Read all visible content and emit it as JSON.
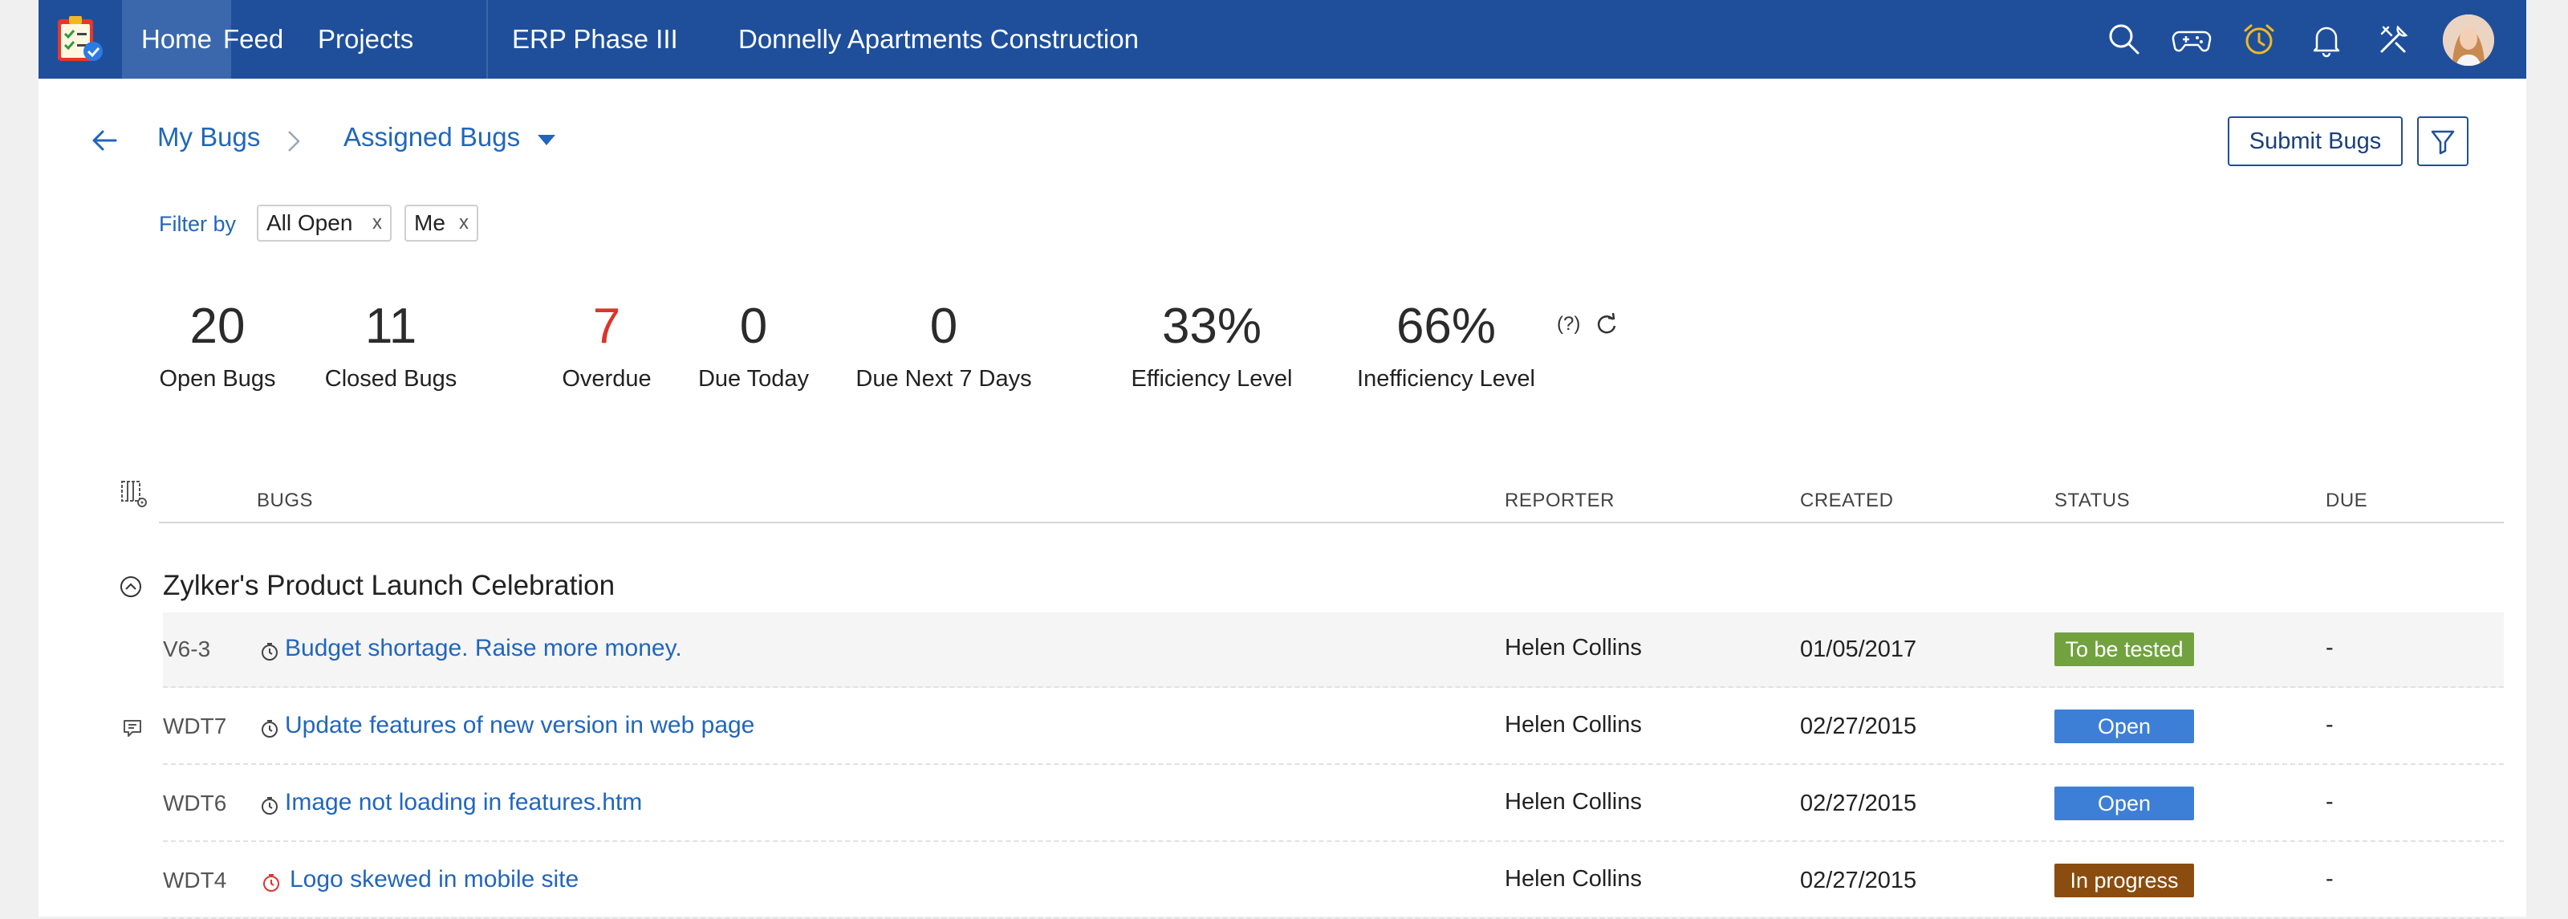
{
  "nav": {
    "items": [
      {
        "label": "Home"
      },
      {
        "label": "Feed"
      },
      {
        "label": "Projects"
      },
      {
        "label": "ERP Phase III"
      },
      {
        "label": "Donnelly Apartments Construction"
      }
    ],
    "icons": [
      "search-icon",
      "gamepad-icon",
      "alarm-clock-icon",
      "bell-icon",
      "tools-icon"
    ],
    "accent_color": "#1f4f9b"
  },
  "breadcrumb": {
    "root": "My Bugs",
    "current": "Assigned Bugs"
  },
  "actions": {
    "submit_label": "Submit Bugs"
  },
  "filters": {
    "label": "Filter by",
    "chips": [
      {
        "label": "All Open",
        "remove": "x"
      },
      {
        "label": "Me",
        "remove": "x"
      }
    ]
  },
  "stats": [
    {
      "value": "20",
      "label": "Open Bugs"
    },
    {
      "value": "11",
      "label": "Closed Bugs"
    },
    {
      "value": "7",
      "label": "Overdue"
    },
    {
      "value": "0",
      "label": "Due Today"
    },
    {
      "value": "0",
      "label": "Due Next 7 Days"
    },
    {
      "value": "33%",
      "label": "Efficiency Level"
    },
    {
      "value": "66%",
      "label": "Inefficiency Level"
    }
  ],
  "stats_help": "(?)",
  "table": {
    "headers": {
      "bugs": "BUGS",
      "reporter": "REPORTER",
      "created": "CREATED",
      "status": "STATUS",
      "due": "DUE"
    },
    "group": "Zylker's Product Launch Celebration",
    "rows": [
      {
        "id": "V6-3",
        "title": "Budget shortage. Raise more money.",
        "reporter": "Helen Collins",
        "created": "01/05/2017",
        "status": "To be tested",
        "status_color": "#72a23f",
        "due": "-",
        "overdue": false
      },
      {
        "id": "WDT7",
        "title": "Update features of new version in web page",
        "reporter": "Helen Collins",
        "created": "02/27/2015",
        "status": "Open",
        "status_color": "#3d7fd6",
        "due": "-",
        "overdue": false
      },
      {
        "id": "WDT6",
        "title": "Image not loading in features.htm",
        "reporter": "Helen Collins",
        "created": "02/27/2015",
        "status": "Open",
        "status_color": "#3d7fd6",
        "due": "-",
        "overdue": false
      },
      {
        "id": "WDT4",
        "title": "Logo skewed in mobile site",
        "reporter": "Helen Collins",
        "created": "02/27/2015",
        "status": "In progress",
        "status_color": "#8a4d0f",
        "due": "-",
        "overdue": true
      }
    ]
  }
}
